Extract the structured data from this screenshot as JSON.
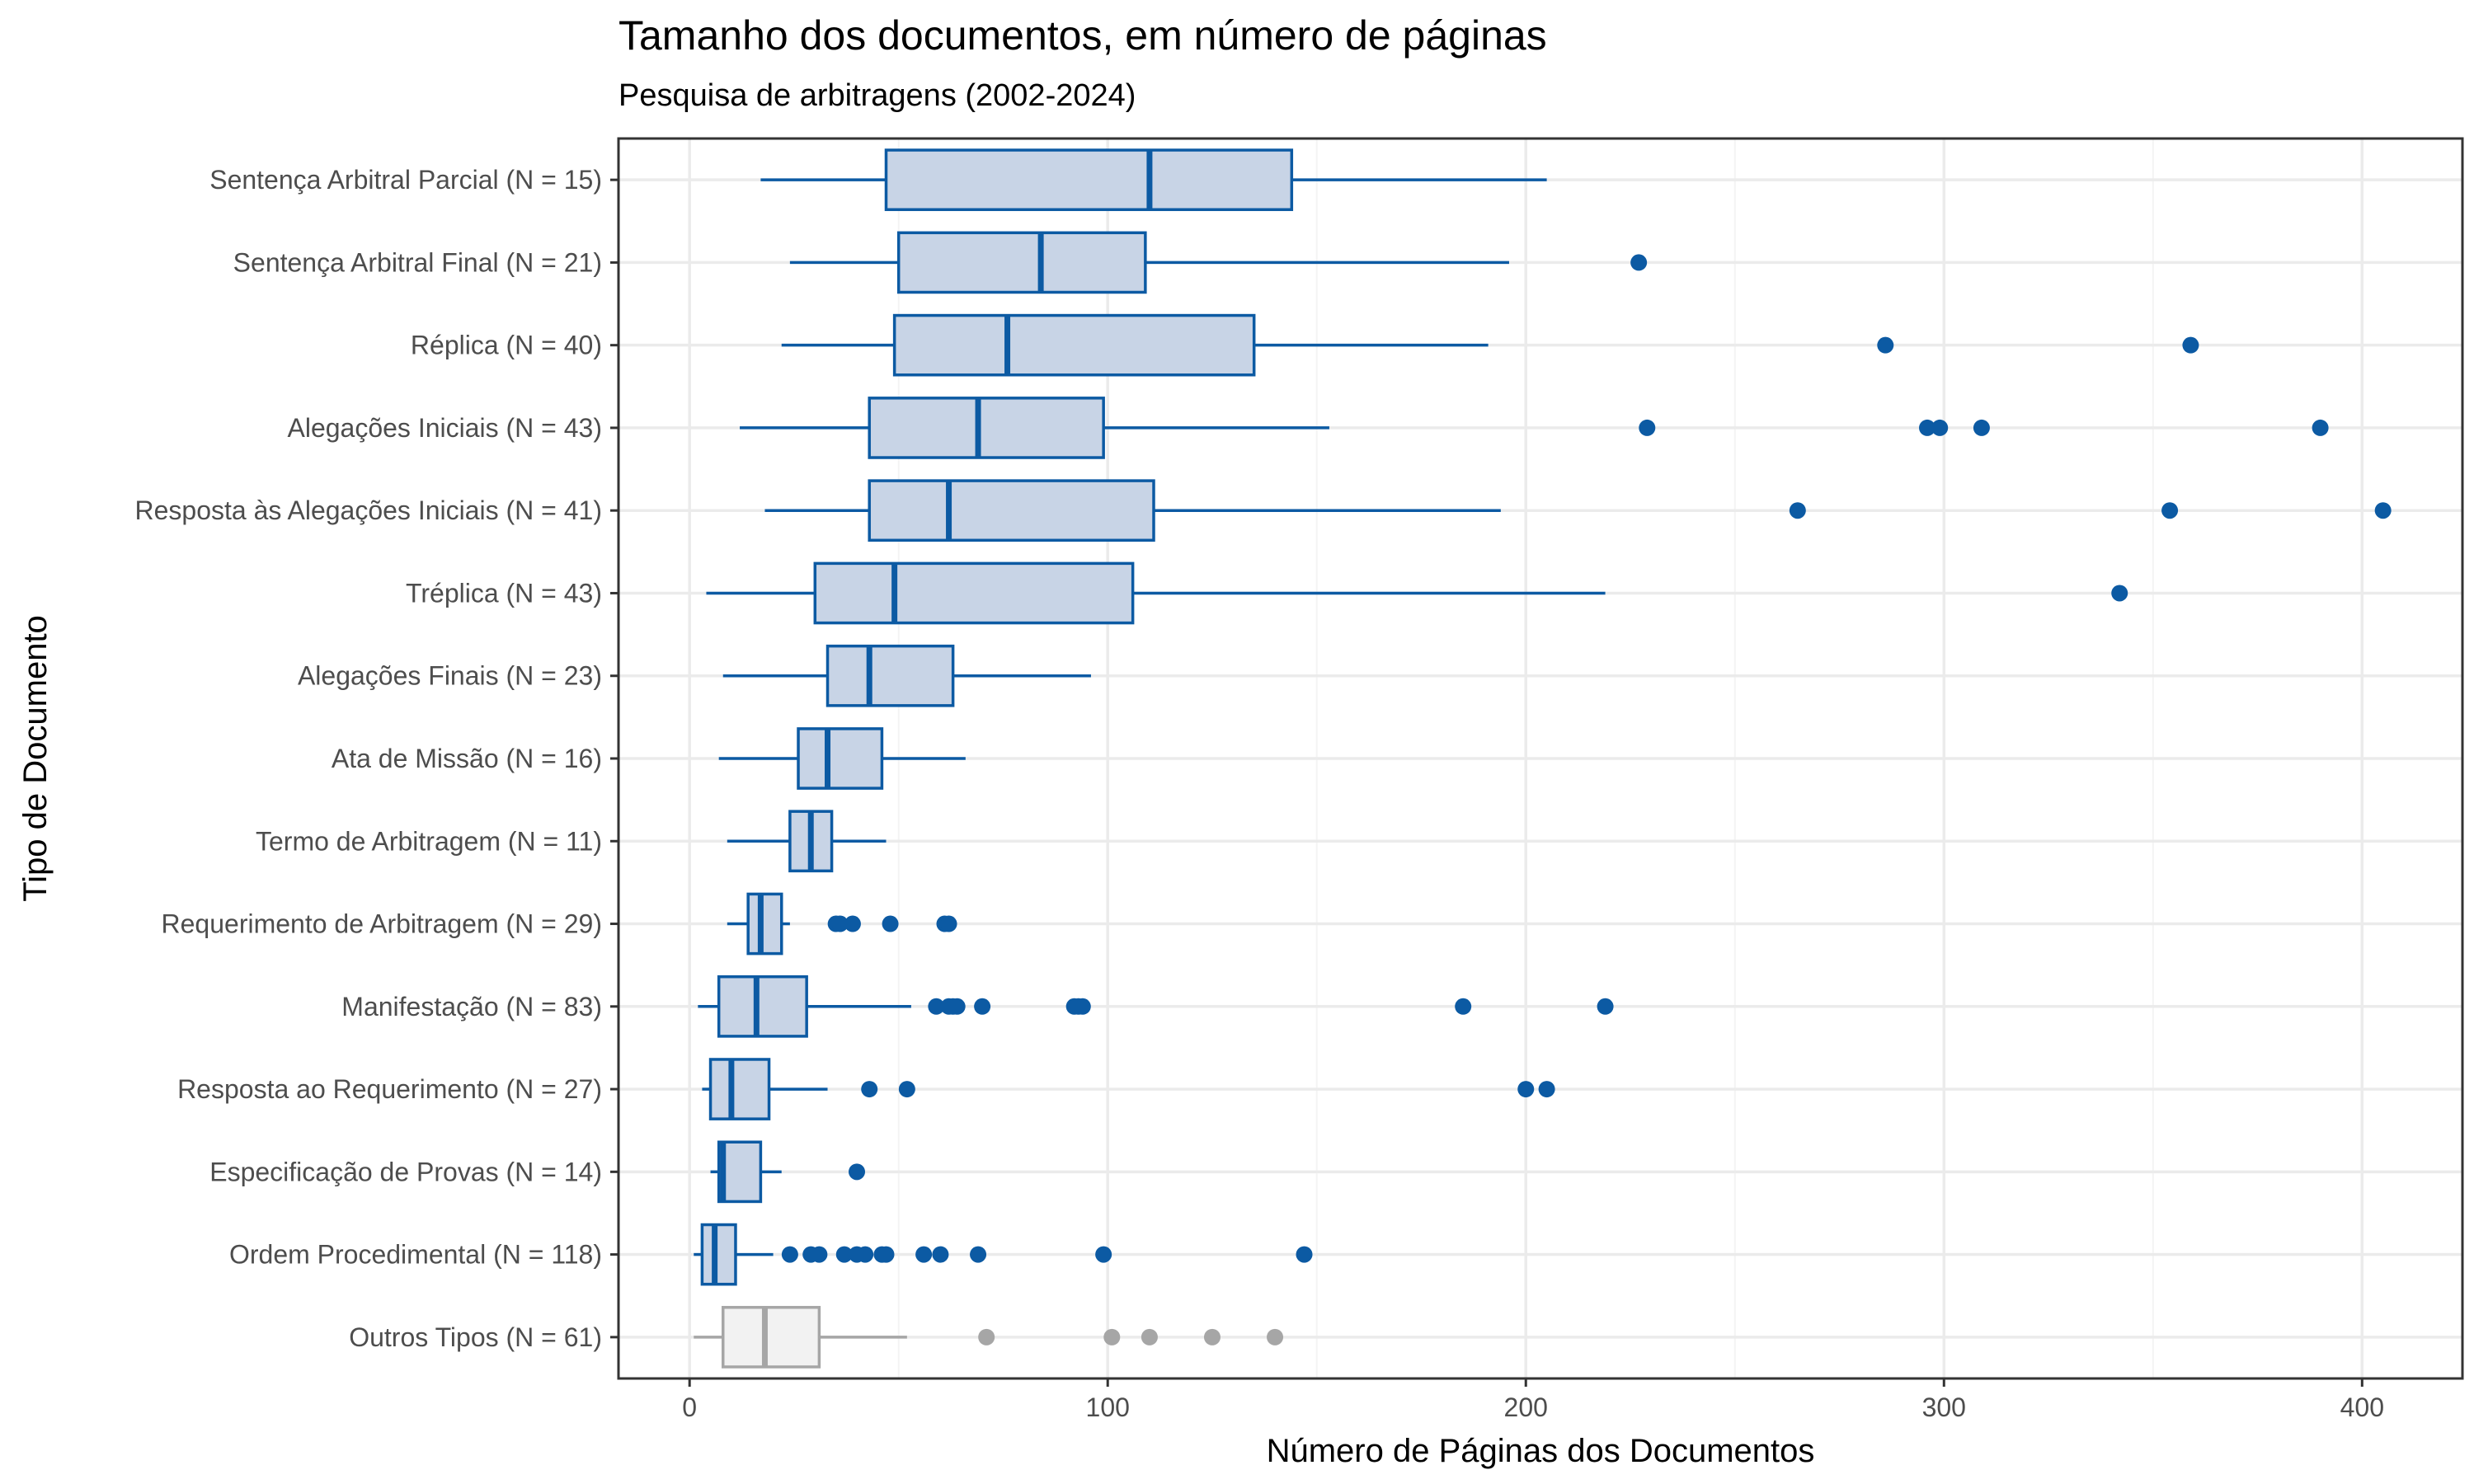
{
  "chart_data": {
    "type": "boxplot",
    "title": "Tamanho dos documentos, em número de páginas",
    "subtitle": "Pesquisa de arbitragens (2002-2024)",
    "xlabel": "Número de Páginas dos Documentos",
    "ylabel": "Tipo de Documento",
    "xlim": [
      -17,
      424
    ],
    "xticks": [
      0,
      100,
      200,
      300,
      400
    ],
    "grid": true,
    "orientation": "horizontal",
    "colors": {
      "main_stroke": "#0c5aa3",
      "main_fill": "#c8d4e6",
      "other_stroke": "#a6a6a6",
      "other_fill": "#f2f2f2",
      "grid_major": "#ebebeb",
      "grid_minor": "#f4f4f4",
      "panel_border": "#333333"
    },
    "categories": [
      {
        "label": "Sentença Arbitral Parcial (N = 15)",
        "whisker_low": 17,
        "q1": 47,
        "median": 110,
        "q3": 144,
        "whisker_high": 205,
        "outliers": []
      },
      {
        "label": "Sentença Arbitral Final (N = 21)",
        "whisker_low": 24,
        "q1": 50,
        "median": 84,
        "q3": 109,
        "whisker_high": 196,
        "outliers": [
          227
        ]
      },
      {
        "label": "Réplica (N = 40)",
        "whisker_low": 22,
        "q1": 49,
        "median": 76,
        "q3": 135,
        "whisker_high": 191,
        "outliers": [
          286,
          359
        ]
      },
      {
        "label": "Alegações Iniciais (N = 43)",
        "whisker_low": 12,
        "q1": 43,
        "median": 69,
        "q3": 99,
        "whisker_high": 153,
        "outliers": [
          229,
          296,
          299,
          309,
          390
        ]
      },
      {
        "label": "Resposta às Alegações Iniciais (N = 41)",
        "whisker_low": 18,
        "q1": 43,
        "median": 62,
        "q3": 111,
        "whisker_high": 194,
        "outliers": [
          265,
          354,
          405
        ]
      },
      {
        "label": "Tréplica (N = 43)",
        "whisker_low": 4,
        "q1": 30,
        "median": 49,
        "q3": 106,
        "whisker_high": 219,
        "outliers": [
          342
        ]
      },
      {
        "label": "Alegações Finais (N = 23)",
        "whisker_low": 8,
        "q1": 33,
        "median": 43,
        "q3": 63,
        "whisker_high": 96,
        "outliers": []
      },
      {
        "label": "Ata de Missão (N = 16)",
        "whisker_low": 7,
        "q1": 26,
        "median": 33,
        "q3": 46,
        "whisker_high": 66,
        "outliers": []
      },
      {
        "label": "Termo de Arbitragem (N = 11)",
        "whisker_low": 9,
        "q1": 24,
        "median": 29,
        "q3": 34,
        "whisker_high": 47,
        "outliers": []
      },
      {
        "label": "Requerimento de Arbitragem (N = 29)",
        "whisker_low": 9,
        "q1": 14,
        "median": 17,
        "q3": 22,
        "whisker_high": 24,
        "outliers": [
          35,
          36,
          39,
          48,
          61,
          62
        ]
      },
      {
        "label": "Manifestação (N = 83)",
        "whisker_low": 2,
        "q1": 7,
        "median": 16,
        "q3": 28,
        "whisker_high": 53,
        "outliers": [
          59,
          62,
          63,
          64,
          70,
          92,
          93,
          94,
          185,
          219
        ]
      },
      {
        "label": "Resposta ao Requerimento (N = 27)",
        "whisker_low": 3,
        "q1": 5,
        "median": 10,
        "q3": 19,
        "whisker_high": 33,
        "outliers": [
          43,
          52,
          200,
          205
        ]
      },
      {
        "label": "Especificação de Provas (N = 14)",
        "whisker_low": 5,
        "q1": 7,
        "median": 8,
        "q3": 17,
        "whisker_high": 22,
        "outliers": [
          40
        ]
      },
      {
        "label": "Ordem Procedimental (N = 118)",
        "whisker_low": 1,
        "q1": 3,
        "median": 6,
        "q3": 11,
        "whisker_high": 20,
        "outliers": [
          24,
          29,
          31,
          37,
          40,
          42,
          46,
          47,
          56,
          60,
          69,
          99,
          147
        ]
      },
      {
        "label": "Outros Tipos (N = 61)",
        "whisker_low": 1,
        "q1": 8,
        "median": 18,
        "q3": 31,
        "whisker_high": 52,
        "outliers": [
          71,
          101,
          110,
          125,
          140
        ],
        "style": "other"
      }
    ]
  }
}
